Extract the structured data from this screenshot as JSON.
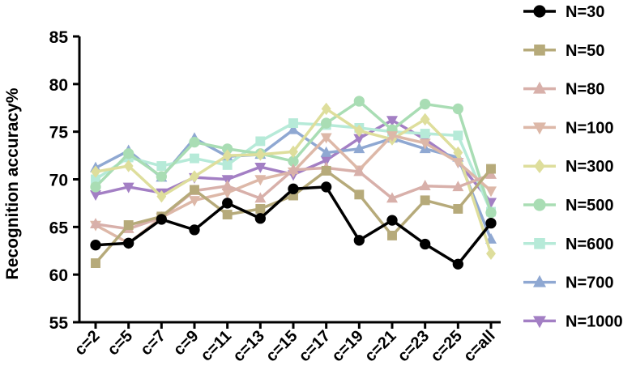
{
  "chart_data": {
    "type": "line",
    "title": "",
    "xlabel": "",
    "ylabel": "Recognition accuracy%",
    "ylim": [
      55,
      85
    ],
    "yticks": [
      55,
      60,
      65,
      70,
      75,
      80,
      85
    ],
    "categories": [
      "c=2",
      "c=5",
      "c=7",
      "c=9",
      "c=11",
      "c=13",
      "c=15",
      "c=17",
      "c=19",
      "c=21",
      "c=23",
      "c=25",
      "c=all"
    ],
    "grid": false,
    "legend_position": "right",
    "series": [
      {
        "name": "N=30",
        "marker": "circle",
        "color": "#000000",
        "values": [
          63.1,
          63.3,
          65.8,
          64.7,
          67.5,
          65.9,
          69.0,
          69.2,
          63.6,
          65.7,
          63.2,
          61.1,
          65.4
        ]
      },
      {
        "name": "N=50",
        "marker": "square",
        "color": "#b6aa7a",
        "values": [
          61.2,
          65.2,
          66.1,
          68.9,
          66.3,
          66.9,
          68.3,
          70.9,
          68.4,
          64.1,
          67.8,
          66.9,
          71.1
        ]
      },
      {
        "name": "N=80",
        "marker": "triangle-up",
        "color": "#d8b0aa",
        "values": [
          65.3,
          64.8,
          66.0,
          68.8,
          69.3,
          68.0,
          71.0,
          71.2,
          70.8,
          68.0,
          69.3,
          69.2,
          70.5
        ]
      },
      {
        "name": "N=100",
        "marker": "triangle-down",
        "color": "#ddb8a8",
        "values": [
          65.2,
          63.3,
          66.0,
          67.8,
          68.6,
          70.0,
          70.8,
          74.4,
          71.0,
          74.6,
          73.8,
          71.8,
          68.8
        ]
      },
      {
        "name": "N=300",
        "marker": "diamond",
        "color": "#dede9c",
        "values": [
          70.8,
          71.4,
          68.2,
          70.3,
          72.5,
          72.6,
          72.9,
          77.4,
          75.1,
          74.2,
          76.3,
          72.8,
          62.2
        ]
      },
      {
        "name": "N=500",
        "marker": "circle",
        "color": "#a9ddb4",
        "values": [
          69.2,
          72.7,
          70.3,
          73.9,
          73.2,
          72.7,
          71.9,
          75.9,
          78.2,
          75.2,
          77.9,
          77.4,
          66.5
        ]
      },
      {
        "name": "N=600",
        "marker": "square",
        "color": "#b6ead8",
        "values": [
          70.0,
          72.3,
          71.4,
          72.2,
          71.5,
          74.0,
          75.9,
          75.7,
          75.4,
          75.0,
          74.8,
          74.6,
          66.6
        ]
      },
      {
        "name": "N=700",
        "marker": "triangle-up",
        "color": "#8fa8d2",
        "values": [
          71.2,
          73.0,
          70.2,
          74.3,
          72.4,
          72.6,
          75.2,
          72.8,
          73.2,
          74.3,
          73.2,
          72.3,
          63.7
        ]
      },
      {
        "name": "N=1000",
        "marker": "triangle-down",
        "color": "#a37fc4",
        "values": [
          68.4,
          69.2,
          68.6,
          70.2,
          70.0,
          71.3,
          70.5,
          72.0,
          74.3,
          76.2,
          74.2,
          71.8,
          67.6
        ]
      }
    ]
  }
}
